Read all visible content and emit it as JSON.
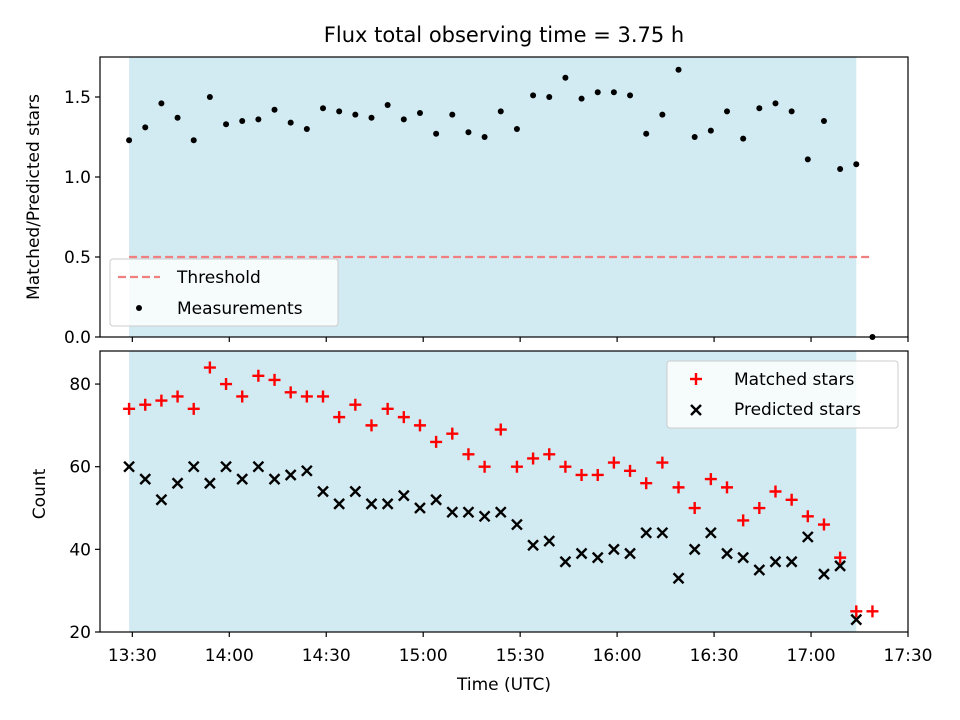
{
  "chart_data": [
    {
      "type": "scatter",
      "title": "Flux total observing time = 3.75 h",
      "xlabel": "",
      "ylabel": "Matched/Predicted stars",
      "xlim": [
        "13:20",
        "17:30"
      ],
      "ylim": [
        0,
        1.75
      ],
      "yticks": [
        0.0,
        0.5,
        1.0,
        1.5
      ],
      "ytick_labels": [
        "0.0",
        "0.5",
        "1.0",
        "1.5"
      ],
      "shaded_span": [
        "13:29",
        "17:14"
      ],
      "shade_color": "#add8e6",
      "legend_position": "lower-left",
      "series": [
        {
          "name": "Threshold",
          "kind": "dashed-line",
          "color": "#f08080",
          "x": [
            "13:29",
            "17:19"
          ],
          "y": [
            0.5,
            0.5
          ]
        },
        {
          "name": "Measurements",
          "kind": "dot",
          "color": "#000000",
          "x": [
            "13:29",
            "13:34",
            "13:39",
            "13:44",
            "13:49",
            "13:54",
            "13:59",
            "14:04",
            "14:09",
            "14:14",
            "14:19",
            "14:24",
            "14:29",
            "14:34",
            "14:39",
            "14:44",
            "14:49",
            "14:54",
            "14:59",
            "15:04",
            "15:09",
            "15:14",
            "15:19",
            "15:24",
            "15:29",
            "15:34",
            "15:39",
            "15:44",
            "15:49",
            "15:54",
            "15:59",
            "16:04",
            "16:09",
            "16:14",
            "16:19",
            "16:24",
            "16:29",
            "16:34",
            "16:39",
            "16:44",
            "16:49",
            "16:54",
            "16:59",
            "17:04",
            "17:09",
            "17:14",
            "17:19"
          ],
          "y": [
            1.23,
            1.31,
            1.46,
            1.37,
            1.23,
            1.5,
            1.33,
            1.35,
            1.36,
            1.42,
            1.34,
            1.3,
            1.43,
            1.41,
            1.39,
            1.37,
            1.45,
            1.36,
            1.4,
            1.27,
            1.39,
            1.28,
            1.25,
            1.41,
            1.3,
            1.51,
            1.5,
            1.62,
            1.49,
            1.53,
            1.53,
            1.51,
            1.27,
            1.39,
            1.67,
            1.25,
            1.29,
            1.41,
            1.24,
            1.43,
            1.46,
            1.41,
            1.11,
            1.35,
            1.05,
            1.08,
            0.0
          ]
        }
      ]
    },
    {
      "type": "scatter",
      "title": "",
      "xlabel": "Time (UTC)",
      "ylabel": "Count",
      "xlim": [
        "13:20",
        "17:30"
      ],
      "ylim": [
        20,
        88
      ],
      "yticks": [
        20,
        40,
        60,
        80
      ],
      "ytick_labels": [
        "20",
        "40",
        "60",
        "80"
      ],
      "xticks": [
        "13:30",
        "14:00",
        "14:30",
        "15:00",
        "15:30",
        "16:00",
        "16:30",
        "17:00",
        "17:30"
      ],
      "shaded_span": [
        "13:29",
        "17:14"
      ],
      "shade_color": "#add8e6",
      "legend_position": "upper-right",
      "series": [
        {
          "name": "Matched stars",
          "kind": "plus",
          "color": "#ff0000",
          "x": [
            "13:29",
            "13:34",
            "13:39",
            "13:44",
            "13:49",
            "13:54",
            "13:59",
            "14:04",
            "14:09",
            "14:14",
            "14:19",
            "14:24",
            "14:29",
            "14:34",
            "14:39",
            "14:44",
            "14:49",
            "14:54",
            "14:59",
            "15:04",
            "15:09",
            "15:14",
            "15:19",
            "15:24",
            "15:29",
            "15:34",
            "15:39",
            "15:44",
            "15:49",
            "15:54",
            "15:59",
            "16:04",
            "16:09",
            "16:14",
            "16:19",
            "16:24",
            "16:29",
            "16:34",
            "16:39",
            "16:44",
            "16:49",
            "16:54",
            "16:59",
            "17:04",
            "17:09",
            "17:14",
            "17:19"
          ],
          "y": [
            74,
            75,
            76,
            77,
            74,
            84,
            80,
            77,
            82,
            81,
            78,
            77,
            77,
            72,
            75,
            70,
            74,
            72,
            70,
            66,
            68,
            63,
            60,
            69,
            60,
            62,
            63,
            60,
            58,
            58,
            61,
            59,
            56,
            61,
            55,
            50,
            57,
            55,
            47,
            50,
            54,
            52,
            48,
            46,
            38,
            25,
            25
          ]
        },
        {
          "name": "Predicted stars",
          "kind": "x",
          "color": "#000000",
          "x": [
            "13:29",
            "13:34",
            "13:39",
            "13:44",
            "13:49",
            "13:54",
            "13:59",
            "14:04",
            "14:09",
            "14:14",
            "14:19",
            "14:24",
            "14:29",
            "14:34",
            "14:39",
            "14:44",
            "14:49",
            "14:54",
            "14:59",
            "15:04",
            "15:09",
            "15:14",
            "15:19",
            "15:24",
            "15:29",
            "15:34",
            "15:39",
            "15:44",
            "15:49",
            "15:54",
            "15:59",
            "16:04",
            "16:09",
            "16:14",
            "16:19",
            "16:24",
            "16:29",
            "16:34",
            "16:39",
            "16:44",
            "16:49",
            "16:54",
            "16:59",
            "17:04",
            "17:09",
            "17:14"
          ],
          "y": [
            60,
            57,
            52,
            56,
            60,
            56,
            60,
            57,
            60,
            57,
            58,
            59,
            54,
            51,
            54,
            51,
            51,
            53,
            50,
            52,
            49,
            49,
            48,
            49,
            46,
            41,
            42,
            37,
            39,
            38,
            40,
            39,
            44,
            44,
            33,
            40,
            44,
            39,
            38,
            35,
            37,
            37,
            43,
            34,
            36,
            23
          ]
        }
      ]
    }
  ]
}
